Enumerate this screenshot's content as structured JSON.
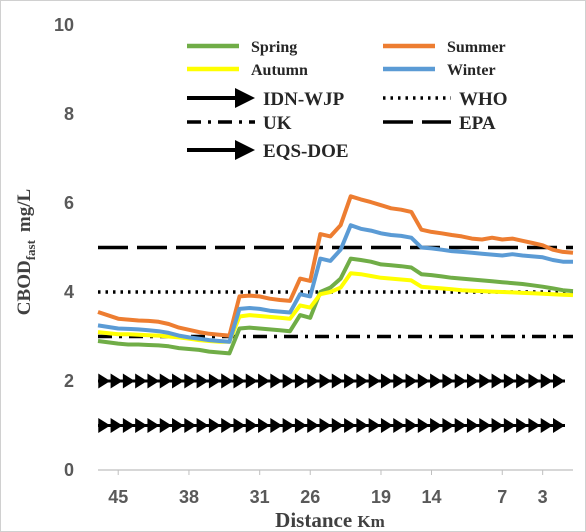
{
  "chart_data": {
    "type": "line",
    "xlabel": "Distance Km",
    "ylabel": "CBODfast mg/L",
    "ylabel_main": "CBOD",
    "ylabel_sub": "fast",
    "ylabel_unit": "mg/L",
    "xlabel_main": "Distance",
    "xlabel_unit": "Km",
    "ylim": [
      0,
      10
    ],
    "xlim": [
      47,
      0
    ],
    "grid": false,
    "legend_position": "top",
    "y_ticks": [
      "0",
      "2",
      "4",
      "6",
      "8",
      "10"
    ],
    "x_ticks": [
      "45",
      "38",
      "31",
      "26",
      "19",
      "14",
      "7",
      "3"
    ],
    "x_tick_values": [
      45,
      38,
      31,
      26,
      19,
      14,
      7,
      3
    ],
    "x": [
      47,
      45,
      44,
      43,
      42,
      41,
      40,
      39,
      38,
      37,
      36,
      35,
      34,
      33,
      32,
      31,
      30,
      29,
      28,
      27,
      26,
      25,
      24,
      23,
      22,
      21,
      20,
      19,
      18,
      17,
      16,
      15,
      14,
      13,
      12,
      11,
      10,
      9,
      8,
      7,
      6,
      5,
      4,
      3,
      2,
      1,
      0
    ],
    "series": [
      {
        "name": "Spring",
        "color": "#70AD47",
        "values": [
          2.9,
          2.84,
          2.82,
          2.82,
          2.81,
          2.8,
          2.78,
          2.74,
          2.72,
          2.7,
          2.66,
          2.64,
          2.62,
          3.18,
          3.2,
          3.18,
          3.16,
          3.14,
          3.12,
          3.48,
          3.42,
          4.0,
          4.1,
          4.3,
          4.75,
          4.72,
          4.68,
          4.62,
          4.6,
          4.58,
          4.55,
          4.4,
          4.38,
          4.35,
          4.32,
          4.3,
          4.28,
          4.26,
          4.24,
          4.22,
          4.2,
          4.18,
          4.15,
          4.12,
          4.08,
          4.04,
          4.02
        ]
      },
      {
        "name": "Summer",
        "color": "#ED7D31",
        "values": [
          3.55,
          3.4,
          3.38,
          3.36,
          3.35,
          3.33,
          3.28,
          3.2,
          3.15,
          3.1,
          3.06,
          3.04,
          3.02,
          3.9,
          3.92,
          3.9,
          3.85,
          3.82,
          3.8,
          4.3,
          4.25,
          5.3,
          5.25,
          5.5,
          6.15,
          6.08,
          6.02,
          5.95,
          5.88,
          5.85,
          5.8,
          5.4,
          5.35,
          5.32,
          5.28,
          5.25,
          5.2,
          5.18,
          5.22,
          5.18,
          5.2,
          5.15,
          5.1,
          5.05,
          4.95,
          4.9,
          4.88
        ]
      },
      {
        "name": "Autumn",
        "color": "#FFFF00",
        "values": [
          3.1,
          3.05,
          3.05,
          3.04,
          3.03,
          3.02,
          3.0,
          2.98,
          2.95,
          2.92,
          2.9,
          2.88,
          2.88,
          3.45,
          3.48,
          3.46,
          3.44,
          3.42,
          3.4,
          3.7,
          3.65,
          3.95,
          4.0,
          4.1,
          4.42,
          4.4,
          4.36,
          4.32,
          4.3,
          4.28,
          4.26,
          4.12,
          4.1,
          4.08,
          4.06,
          4.04,
          4.03,
          4.02,
          4.01,
          4.0,
          3.99,
          3.98,
          3.97,
          3.96,
          3.95,
          3.94,
          3.93
        ]
      },
      {
        "name": "Winter",
        "color": "#5B9BD5",
        "values": [
          3.25,
          3.18,
          3.17,
          3.16,
          3.14,
          3.12,
          3.08,
          3.02,
          2.98,
          2.95,
          2.92,
          2.9,
          2.88,
          3.62,
          3.64,
          3.62,
          3.58,
          3.56,
          3.54,
          3.95,
          3.9,
          4.75,
          4.7,
          4.95,
          5.5,
          5.42,
          5.38,
          5.32,
          5.28,
          5.26,
          5.22,
          5.0,
          4.98,
          4.95,
          4.92,
          4.9,
          4.88,
          4.86,
          4.84,
          4.82,
          4.85,
          4.82,
          4.8,
          4.78,
          4.72,
          4.68,
          4.68
        ]
      }
    ],
    "standards": [
      {
        "name": "IDN-WJP",
        "value": 2,
        "style": "arrow",
        "color": "#000000"
      },
      {
        "name": "WHO",
        "value": 4,
        "style": "dotted",
        "color": "#000000"
      },
      {
        "name": "UK",
        "value": 3,
        "style": "dashdot",
        "color": "#000000"
      },
      {
        "name": "EPA",
        "value": 5,
        "style": "longdash",
        "color": "#000000"
      },
      {
        "name": "EQS-DOE",
        "value": 1,
        "style": "arrow",
        "color": "#000000"
      }
    ]
  }
}
